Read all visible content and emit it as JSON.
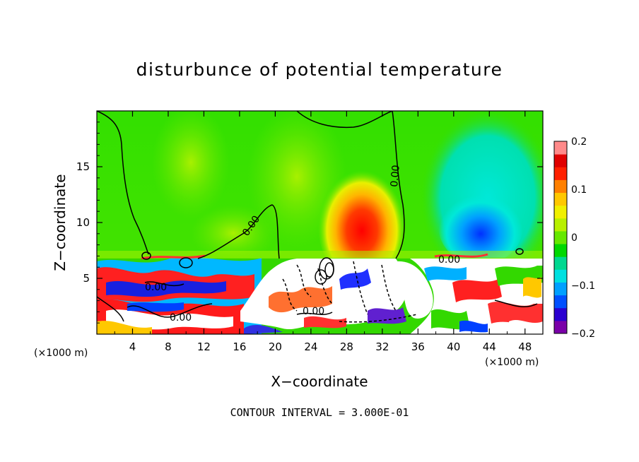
{
  "chart_data": {
    "type": "heatmap",
    "title": "disturbunce of potential temperature",
    "xlabel": "X−coordinate",
    "ylabel": "Z−coordinate",
    "x_unit": "(×1000 m)",
    "x_unit_right": "(×1000 m)",
    "xlim": [
      0,
      50
    ],
    "ylim": [
      0,
      20
    ],
    "xticks": [
      "4",
      "8",
      "12",
      "16",
      "20",
      "24",
      "28",
      "32",
      "36",
      "40",
      "44",
      "48"
    ],
    "yticks": [
      "5",
      "10",
      "15"
    ],
    "colorbar": {
      "range": [
        -0.2,
        0.2
      ],
      "tick_labels": [
        "0.2",
        "0.1",
        "0",
        "−0.1",
        "−0.2"
      ],
      "colors": [
        "#7a00a8",
        "#2a00d0",
        "#0050ff",
        "#00a0ff",
        "#00e0e0",
        "#00d890",
        "#00d800",
        "#66e800",
        "#b8f000",
        "#f0f000",
        "#ffc800",
        "#ff8000",
        "#ff2000",
        "#e00000",
        "#ff8a8a"
      ]
    },
    "contour_labels": [
      "0.00",
      "0.00",
      "0.00",
      "0.00",
      "0.00",
      "0.00"
    ],
    "contour_interval_text": "CONTOUR INTERVAL = 3.000E-01"
  },
  "colors": {
    "green": "#33e000",
    "light_green": "#66e800",
    "cyan": "#00e8d8",
    "blue": "#1010e8",
    "red": "#ff1010",
    "white": "#ffffff"
  }
}
